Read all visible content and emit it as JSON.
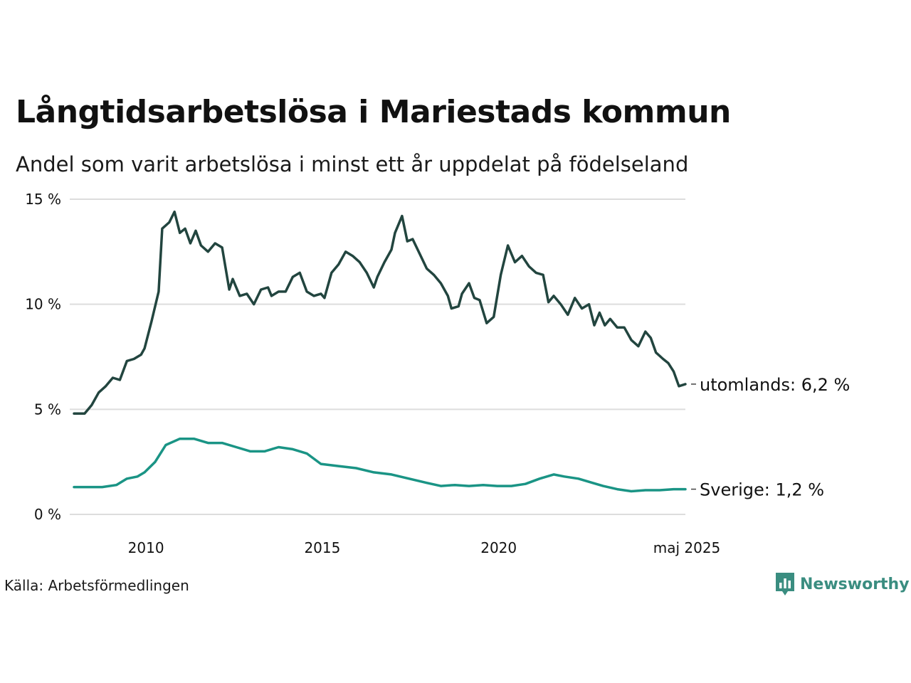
{
  "title": "Långtidsarbetslösa i Mariestads kommun",
  "subtitle": "Andel som varit arbetslösa i minst ett år uppdelat på födelseland",
  "source": "Källa: Arbetsförmedlingen",
  "brand": {
    "name": "Newsworthy",
    "logo_icon": "bar-chart-icon"
  },
  "colors": {
    "utomlands": "#22453f",
    "sverige": "#1a9485",
    "grid": "#dddddd",
    "brand": "#3a8d80"
  },
  "chart_data": {
    "type": "line",
    "title": "",
    "xlabel": "",
    "ylabel": "",
    "xlim": [
      2008.0,
      2025.3333
    ],
    "ylim": [
      0,
      15
    ],
    "x_ticks": [
      {
        "label": "2010",
        "value": 2010
      },
      {
        "label": "2015",
        "value": 2015
      },
      {
        "label": "2020",
        "value": 2020
      },
      {
        "label": "maj 2025",
        "value": 2025.3333
      }
    ],
    "y_ticks": [
      {
        "label": "0 %",
        "value": 0
      },
      {
        "label": "5 %",
        "value": 5
      },
      {
        "label": "10 %",
        "value": 10
      },
      {
        "label": "15 %",
        "value": 15
      }
    ],
    "grid": true,
    "legend": "end-labels",
    "series": [
      {
        "key": "utomlands",
        "end_label": "utomlands: 6,2 %",
        "color": "#22453f",
        "points": [
          [
            2008.0,
            4.8
          ],
          [
            2008.3,
            4.8
          ],
          [
            2008.5,
            5.2
          ],
          [
            2008.7,
            5.8
          ],
          [
            2008.9,
            6.1
          ],
          [
            2009.1,
            6.5
          ],
          [
            2009.3,
            6.4
          ],
          [
            2009.5,
            7.3
          ],
          [
            2009.7,
            7.4
          ],
          [
            2009.9,
            7.6
          ],
          [
            2010.0,
            7.9
          ],
          [
            2010.2,
            9.2
          ],
          [
            2010.4,
            10.6
          ],
          [
            2010.5,
            13.6
          ],
          [
            2010.7,
            13.9
          ],
          [
            2010.85,
            14.4
          ],
          [
            2011.0,
            13.4
          ],
          [
            2011.15,
            13.6
          ],
          [
            2011.3,
            12.9
          ],
          [
            2011.45,
            13.5
          ],
          [
            2011.6,
            12.8
          ],
          [
            2011.8,
            12.5
          ],
          [
            2012.0,
            12.9
          ],
          [
            2012.2,
            12.7
          ],
          [
            2012.4,
            10.7
          ],
          [
            2012.5,
            11.2
          ],
          [
            2012.7,
            10.4
          ],
          [
            2012.9,
            10.5
          ],
          [
            2013.1,
            10.0
          ],
          [
            2013.3,
            10.7
          ],
          [
            2013.5,
            10.8
          ],
          [
            2013.6,
            10.4
          ],
          [
            2013.8,
            10.6
          ],
          [
            2014.0,
            10.6
          ],
          [
            2014.2,
            11.3
          ],
          [
            2014.4,
            11.5
          ],
          [
            2014.6,
            10.6
          ],
          [
            2014.8,
            10.4
          ],
          [
            2015.0,
            10.5
          ],
          [
            2015.1,
            10.3
          ],
          [
            2015.3,
            11.5
          ],
          [
            2015.5,
            11.9
          ],
          [
            2015.7,
            12.5
          ],
          [
            2015.9,
            12.3
          ],
          [
            2016.1,
            12.0
          ],
          [
            2016.3,
            11.5
          ],
          [
            2016.5,
            10.8
          ],
          [
            2016.6,
            11.3
          ],
          [
            2016.8,
            12.0
          ],
          [
            2017.0,
            12.6
          ],
          [
            2017.1,
            13.4
          ],
          [
            2017.3,
            14.2
          ],
          [
            2017.45,
            13.0
          ],
          [
            2017.6,
            13.1
          ],
          [
            2017.8,
            12.4
          ],
          [
            2018.0,
            11.7
          ],
          [
            2018.2,
            11.4
          ],
          [
            2018.4,
            11.0
          ],
          [
            2018.6,
            10.4
          ],
          [
            2018.7,
            9.8
          ],
          [
            2018.9,
            9.9
          ],
          [
            2019.0,
            10.5
          ],
          [
            2019.2,
            11.0
          ],
          [
            2019.35,
            10.3
          ],
          [
            2019.5,
            10.2
          ],
          [
            2019.7,
            9.1
          ],
          [
            2019.9,
            9.4
          ],
          [
            2020.1,
            11.4
          ],
          [
            2020.3,
            12.8
          ],
          [
            2020.5,
            12.0
          ],
          [
            2020.7,
            12.3
          ],
          [
            2020.9,
            11.8
          ],
          [
            2021.1,
            11.5
          ],
          [
            2021.3,
            11.4
          ],
          [
            2021.45,
            10.1
          ],
          [
            2021.6,
            10.4
          ],
          [
            2021.8,
            10.0
          ],
          [
            2022.0,
            9.5
          ],
          [
            2022.2,
            10.3
          ],
          [
            2022.4,
            9.8
          ],
          [
            2022.6,
            10.0
          ],
          [
            2022.75,
            9.0
          ],
          [
            2022.9,
            9.6
          ],
          [
            2023.05,
            9.0
          ],
          [
            2023.2,
            9.3
          ],
          [
            2023.4,
            8.9
          ],
          [
            2023.6,
            8.9
          ],
          [
            2023.8,
            8.3
          ],
          [
            2024.0,
            8.0
          ],
          [
            2024.2,
            8.7
          ],
          [
            2024.35,
            8.4
          ],
          [
            2024.5,
            7.7
          ],
          [
            2024.7,
            7.4
          ],
          [
            2024.85,
            7.2
          ],
          [
            2025.0,
            6.8
          ],
          [
            2025.15,
            6.1
          ],
          [
            2025.3333,
            6.2
          ]
        ]
      },
      {
        "key": "sverige",
        "end_label": "Sverige: 1,2 %",
        "color": "#1a9485",
        "points": [
          [
            2008.0,
            1.3
          ],
          [
            2008.4,
            1.3
          ],
          [
            2008.8,
            1.3
          ],
          [
            2009.2,
            1.4
          ],
          [
            2009.5,
            1.7
          ],
          [
            2009.8,
            1.8
          ],
          [
            2010.0,
            2.0
          ],
          [
            2010.3,
            2.5
          ],
          [
            2010.6,
            3.3
          ],
          [
            2011.0,
            3.6
          ],
          [
            2011.4,
            3.6
          ],
          [
            2011.8,
            3.4
          ],
          [
            2012.2,
            3.4
          ],
          [
            2012.6,
            3.2
          ],
          [
            2013.0,
            3.0
          ],
          [
            2013.4,
            3.0
          ],
          [
            2013.8,
            3.2
          ],
          [
            2014.2,
            3.1
          ],
          [
            2014.6,
            2.9
          ],
          [
            2015.0,
            2.4
          ],
          [
            2015.5,
            2.3
          ],
          [
            2016.0,
            2.2
          ],
          [
            2016.5,
            2.0
          ],
          [
            2017.0,
            1.9
          ],
          [
            2017.5,
            1.7
          ],
          [
            2018.0,
            1.5
          ],
          [
            2018.4,
            1.35
          ],
          [
            2018.8,
            1.4
          ],
          [
            2019.2,
            1.35
          ],
          [
            2019.6,
            1.4
          ],
          [
            2020.0,
            1.35
          ],
          [
            2020.4,
            1.35
          ],
          [
            2020.8,
            1.45
          ],
          [
            2021.2,
            1.7
          ],
          [
            2021.6,
            1.9
          ],
          [
            2021.9,
            1.8
          ],
          [
            2022.3,
            1.7
          ],
          [
            2022.7,
            1.5
          ],
          [
            2023.0,
            1.35
          ],
          [
            2023.4,
            1.2
          ],
          [
            2023.8,
            1.1
          ],
          [
            2024.2,
            1.15
          ],
          [
            2024.6,
            1.15
          ],
          [
            2025.0,
            1.2
          ],
          [
            2025.3333,
            1.2
          ]
        ]
      }
    ]
  }
}
